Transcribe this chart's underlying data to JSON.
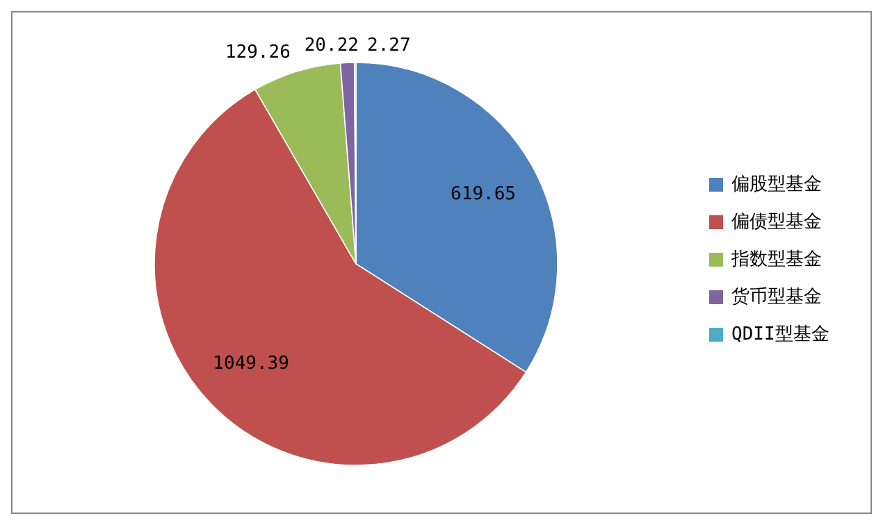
{
  "chart_data": {
    "type": "pie",
    "categories": [
      "偏股型基金",
      "偏债型基金",
      "指数型基金",
      "货币型基金",
      "QDII型基金"
    ],
    "values": [
      619.65,
      1049.39,
      129.26,
      20.22,
      2.27
    ],
    "colors": [
      "#4f81bd",
      "#c0504d",
      "#9bbb59",
      "#8064a2",
      "#4bacc6"
    ],
    "data_labels": true,
    "legend": "right"
  }
}
